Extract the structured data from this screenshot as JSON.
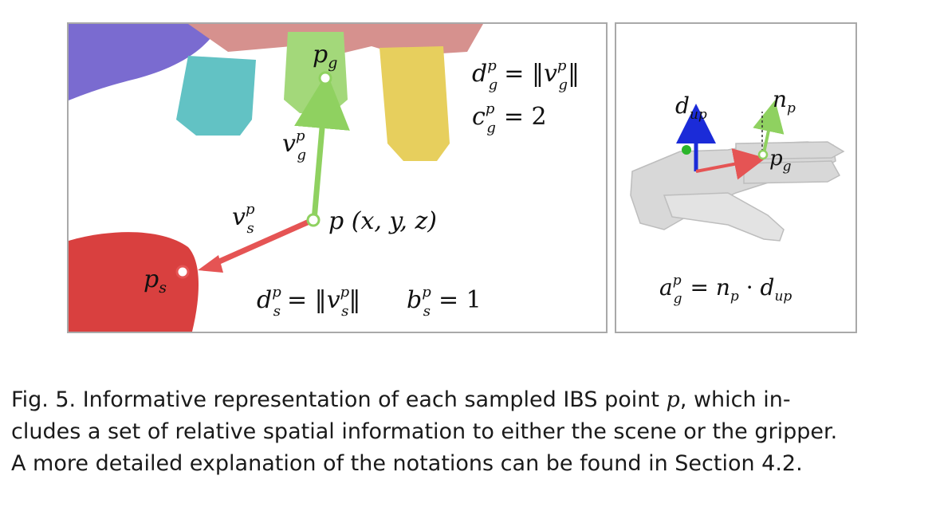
{
  "figure": {
    "left_panel": {
      "point_labels": {
        "pg": "p",
        "pg_sub": "g",
        "ps": "p",
        "ps_sub": "s"
      },
      "vectors": {
        "vg": "v",
        "vg_sup": "p",
        "vg_sub": "g",
        "vs": "v",
        "vs_sup": "p",
        "vs_sub": "s"
      },
      "point_p": "p (x, y, z)",
      "eq_dg": "d ᵖ = ‖vᵖ‖",
      "eq_dg_parts": {
        "lhs": "d",
        "sup": "p",
        "sub": "g",
        "eq": "= ‖",
        "v": "v",
        "vsup": "p",
        "vsub": "g",
        "end": "‖"
      },
      "eq_cg_parts": {
        "lhs": "c",
        "sup": "p",
        "sub": "g",
        "rhs": "= 2"
      },
      "eq_ds_parts": {
        "lhs": "d",
        "sup": "p",
        "sub": "s",
        "eq": "= ‖",
        "v": "v",
        "vsup": "p",
        "vsub": "s",
        "end": "‖"
      },
      "eq_bs_parts": {
        "lhs": "b",
        "sup": "p",
        "sub": "s",
        "rhs": "= 1"
      }
    },
    "right_panel": {
      "dup_label": {
        "d": "d",
        "sub": "up"
      },
      "np_label": {
        "n": "n",
        "sub": "p"
      },
      "pg_label": {
        "p": "p",
        "sub": "g"
      },
      "eq_ag_parts": {
        "lhs": "a",
        "sup": "p",
        "sub": "g",
        "eq": "= ",
        "n": "n",
        "nsub": "p",
        "dot": " · ",
        "d": "d",
        "dsub": "up"
      }
    },
    "colors": {
      "green_vec": "#8fd160",
      "red_vec": "#e55454",
      "blue_axis": "#1b2bd8",
      "scene_red": "#d9403f",
      "finger_green": "#a3d87a",
      "finger_cyan": "#62c2c4",
      "finger_yellow": "#e7cf5d",
      "palm_pink": "#d6918e",
      "purple": "#7a6bd0"
    }
  },
  "caption": {
    "line1_a": "Fig. 5.  Informative representation of each sampled IBS point ",
    "line1_var": "p",
    "line1_b": ", which in-",
    "line2": "cludes a set of relative spatial information to either the scene or the gripper.",
    "line3": "A more detailed explanation of the notations can be found in Section 4.2."
  }
}
